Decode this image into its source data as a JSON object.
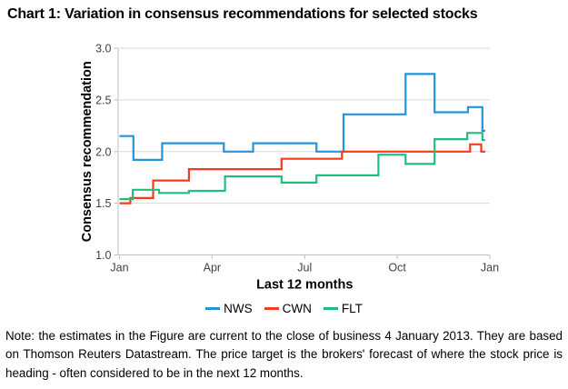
{
  "title": "Chart 1: Variation in consensus recommendations for selected stocks",
  "note": "Note: the estimates in the Figure are current to the close of business 4 January 2013. They are based on Thomson Reuters Datastream. The price target is the brokers' forecast of where the stock price is heading - often considered to be in the next 12 months.",
  "chart_data": {
    "type": "line",
    "subtype": "step",
    "xlabel": "Last 12 months",
    "ylabel": "Consensus recommendation",
    "ylim": [
      1.0,
      3.0
    ],
    "y_ticks": [
      1.0,
      1.5,
      2.0,
      2.5,
      3.0
    ],
    "y_tick_labels": [
      "1.0",
      "1.5",
      "2.0",
      "2.5",
      "3.0"
    ],
    "x_tick_months": [
      0,
      3,
      6,
      9,
      12
    ],
    "x_tick_labels": [
      "Jan",
      "Apr",
      "Jul",
      "Oct",
      "Jan"
    ],
    "x_range_months": [
      0,
      12
    ],
    "series_end_month": 11.85,
    "grid": "horizontal",
    "legend_position": "bottom",
    "series": [
      {
        "name": "NWS",
        "color": "#2295d9",
        "points": [
          [
            0,
            2.15
          ],
          [
            0.45,
            1.92
          ],
          [
            1.38,
            2.08
          ],
          [
            3.38,
            2.0
          ],
          [
            4.33,
            2.08
          ],
          [
            6.38,
            2.0
          ],
          [
            7.26,
            2.36
          ],
          [
            9.27,
            2.75
          ],
          [
            10.21,
            2.38
          ],
          [
            11.29,
            2.43
          ],
          [
            11.76,
            2.2
          ]
        ]
      },
      {
        "name": "CWN",
        "color": "#f63a1c",
        "points": [
          [
            0,
            1.5
          ],
          [
            0.35,
            1.55
          ],
          [
            1.09,
            1.72
          ],
          [
            2.25,
            1.83
          ],
          [
            5.25,
            1.93
          ],
          [
            7.21,
            2.0
          ],
          [
            11.36,
            2.07
          ],
          [
            11.72,
            2.0
          ]
        ]
      },
      {
        "name": "FLT",
        "color": "#1fbe7d",
        "points": [
          [
            0,
            1.54
          ],
          [
            0.43,
            1.63
          ],
          [
            1.28,
            1.6
          ],
          [
            2.25,
            1.62
          ],
          [
            3.42,
            1.76
          ],
          [
            5.25,
            1.7
          ],
          [
            6.38,
            1.77
          ],
          [
            8.39,
            1.97
          ],
          [
            9.27,
            1.88
          ],
          [
            10.21,
            2.12
          ],
          [
            11.27,
            2.18
          ],
          [
            11.76,
            2.11
          ]
        ]
      }
    ],
    "style_colors": {
      "grid": "#d9d9d9",
      "axis": "#bfbfbf",
      "tick_label": "#404040",
      "axis_title": "#000000"
    }
  }
}
